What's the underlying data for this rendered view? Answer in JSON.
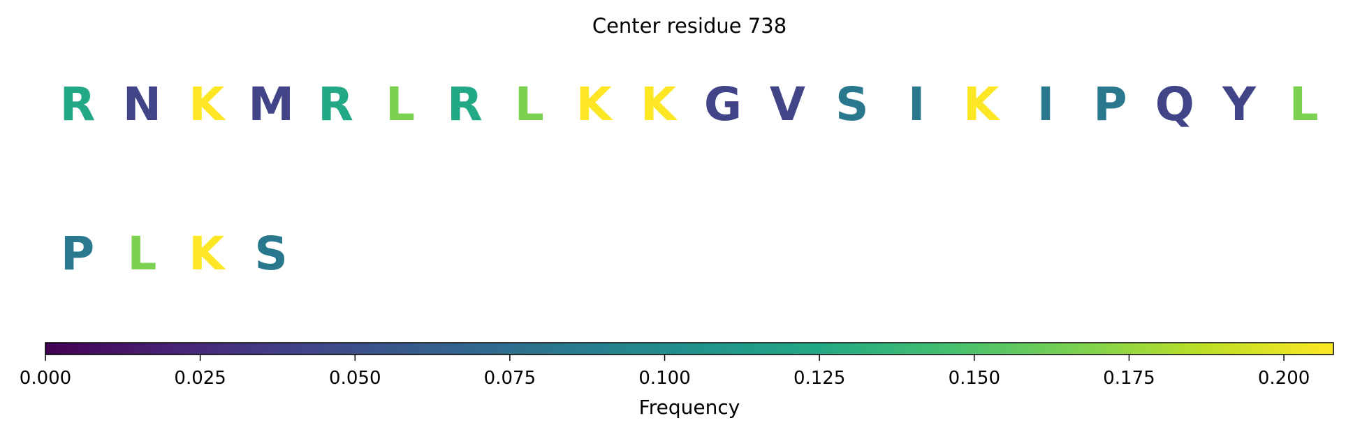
{
  "chart_data": {
    "type": "sequence-logo",
    "title": "Center residue 738",
    "residues": [
      {
        "letter": "R",
        "frequency": 0.125
      },
      {
        "letter": "N",
        "frequency": 0.042
      },
      {
        "letter": "K",
        "frequency": 0.208
      },
      {
        "letter": "M",
        "frequency": 0.042
      },
      {
        "letter": "R",
        "frequency": 0.125
      },
      {
        "letter": "L",
        "frequency": 0.167
      },
      {
        "letter": "R",
        "frequency": 0.125
      },
      {
        "letter": "L",
        "frequency": 0.167
      },
      {
        "letter": "K",
        "frequency": 0.208
      },
      {
        "letter": "K",
        "frequency": 0.208
      },
      {
        "letter": "G",
        "frequency": 0.042
      },
      {
        "letter": "V",
        "frequency": 0.042
      },
      {
        "letter": "S",
        "frequency": 0.083
      },
      {
        "letter": "I",
        "frequency": 0.083
      },
      {
        "letter": "K",
        "frequency": 0.208
      },
      {
        "letter": "I",
        "frequency": 0.083
      },
      {
        "letter": "P",
        "frequency": 0.083
      },
      {
        "letter": "Q",
        "frequency": 0.042
      },
      {
        "letter": "Y",
        "frequency": 0.042
      },
      {
        "letter": "L",
        "frequency": 0.167
      },
      {
        "letter": "P",
        "frequency": 0.083
      },
      {
        "letter": "L",
        "frequency": 0.167
      },
      {
        "letter": "K",
        "frequency": 0.208
      },
      {
        "letter": "S",
        "frequency": 0.083
      }
    ],
    "residues_per_row": 20,
    "colorbar": {
      "label": "Frequency",
      "colormap": "viridis",
      "range": [
        0,
        0.208
      ],
      "ticks": [
        "0.000",
        "0.025",
        "0.050",
        "0.075",
        "0.100",
        "0.125",
        "0.150",
        "0.175",
        "0.200"
      ],
      "orientation": "horizontal"
    }
  }
}
